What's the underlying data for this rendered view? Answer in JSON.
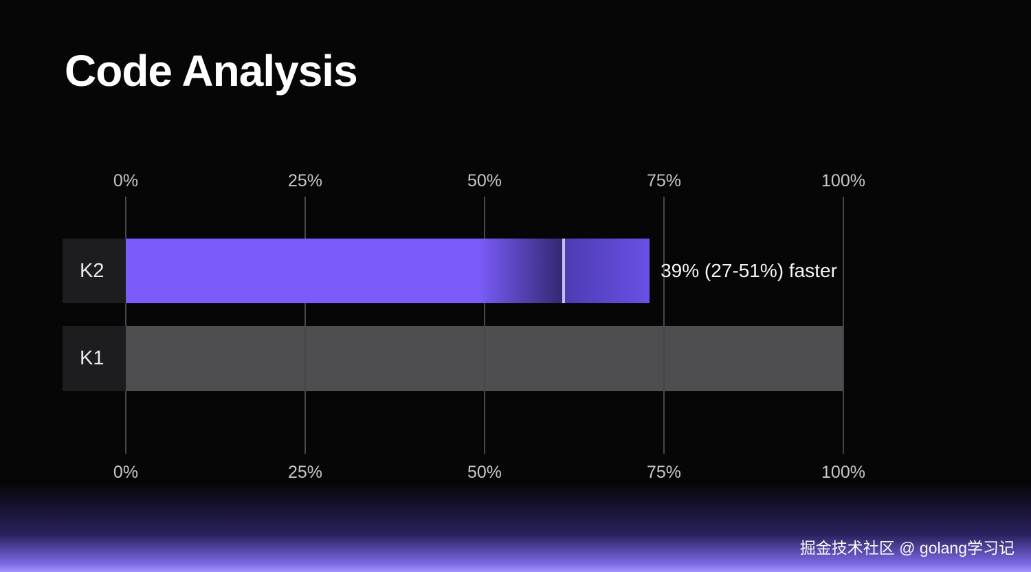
{
  "title": "Code Analysis",
  "watermark": "掘金技术社区 @ golang学习记",
  "chart_data": {
    "type": "bar",
    "orientation": "horizontal",
    "title": "Code Analysis",
    "xlim": [
      0,
      100
    ],
    "x_ticks": [
      "0%",
      "25%",
      "50%",
      "75%",
      "100%"
    ],
    "grid": true,
    "legend": "none",
    "categories": [
      "K2",
      "K1"
    ],
    "bars": [
      {
        "label": "K2",
        "low": 49,
        "mid": 61,
        "high": 73,
        "annotation": "39% (27-51%) faster"
      },
      {
        "label": "K1",
        "value": 100
      }
    ]
  },
  "colors": {
    "background": "#060607",
    "bar_primary": "#7b5cfa",
    "bar_dark": "#322871",
    "bar_mid": "#4c3cb2",
    "bar_end": "#6a50e6",
    "marker": "#c9bdff",
    "k1_bar": "#4e4e50",
    "grid": "#47474b",
    "label_box": "#1d1d1f",
    "glow": "#a294fa"
  }
}
